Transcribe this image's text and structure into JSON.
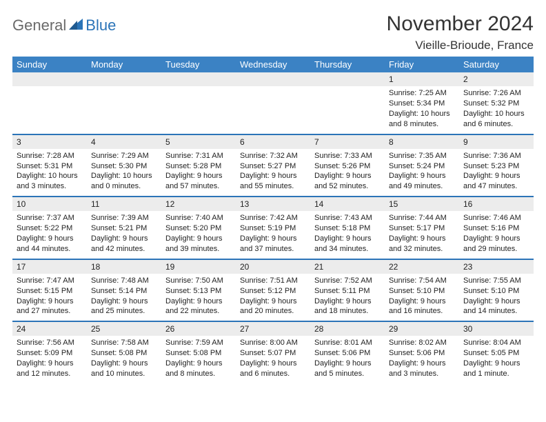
{
  "brand": {
    "text1": "General",
    "text2": "Blue"
  },
  "header": {
    "month_title": "November 2024",
    "location": "Vieille-Brioude, France"
  },
  "colors": {
    "header_bg": "#3b82c4",
    "rule": "#2b74b8",
    "shade": "#ececec",
    "text": "#222222"
  },
  "weekdays": [
    "Sunday",
    "Monday",
    "Tuesday",
    "Wednesday",
    "Thursday",
    "Friday",
    "Saturday"
  ],
  "weeks": [
    [
      {
        "n": "",
        "sr": "",
        "ss": "",
        "dl": "",
        "empty": true
      },
      {
        "n": "",
        "sr": "",
        "ss": "",
        "dl": "",
        "empty": true
      },
      {
        "n": "",
        "sr": "",
        "ss": "",
        "dl": "",
        "empty": true
      },
      {
        "n": "",
        "sr": "",
        "ss": "",
        "dl": "",
        "empty": true
      },
      {
        "n": "",
        "sr": "",
        "ss": "",
        "dl": "",
        "empty": true
      },
      {
        "n": "1",
        "sr": "Sunrise: 7:25 AM",
        "ss": "Sunset: 5:34 PM",
        "dl": "Daylight: 10 hours and 8 minutes."
      },
      {
        "n": "2",
        "sr": "Sunrise: 7:26 AM",
        "ss": "Sunset: 5:32 PM",
        "dl": "Daylight: 10 hours and 6 minutes."
      }
    ],
    [
      {
        "n": "3",
        "sr": "Sunrise: 7:28 AM",
        "ss": "Sunset: 5:31 PM",
        "dl": "Daylight: 10 hours and 3 minutes."
      },
      {
        "n": "4",
        "sr": "Sunrise: 7:29 AM",
        "ss": "Sunset: 5:30 PM",
        "dl": "Daylight: 10 hours and 0 minutes."
      },
      {
        "n": "5",
        "sr": "Sunrise: 7:31 AM",
        "ss": "Sunset: 5:28 PM",
        "dl": "Daylight: 9 hours and 57 minutes."
      },
      {
        "n": "6",
        "sr": "Sunrise: 7:32 AM",
        "ss": "Sunset: 5:27 PM",
        "dl": "Daylight: 9 hours and 55 minutes."
      },
      {
        "n": "7",
        "sr": "Sunrise: 7:33 AM",
        "ss": "Sunset: 5:26 PM",
        "dl": "Daylight: 9 hours and 52 minutes."
      },
      {
        "n": "8",
        "sr": "Sunrise: 7:35 AM",
        "ss": "Sunset: 5:24 PM",
        "dl": "Daylight: 9 hours and 49 minutes."
      },
      {
        "n": "9",
        "sr": "Sunrise: 7:36 AM",
        "ss": "Sunset: 5:23 PM",
        "dl": "Daylight: 9 hours and 47 minutes."
      }
    ],
    [
      {
        "n": "10",
        "sr": "Sunrise: 7:37 AM",
        "ss": "Sunset: 5:22 PM",
        "dl": "Daylight: 9 hours and 44 minutes."
      },
      {
        "n": "11",
        "sr": "Sunrise: 7:39 AM",
        "ss": "Sunset: 5:21 PM",
        "dl": "Daylight: 9 hours and 42 minutes."
      },
      {
        "n": "12",
        "sr": "Sunrise: 7:40 AM",
        "ss": "Sunset: 5:20 PM",
        "dl": "Daylight: 9 hours and 39 minutes."
      },
      {
        "n": "13",
        "sr": "Sunrise: 7:42 AM",
        "ss": "Sunset: 5:19 PM",
        "dl": "Daylight: 9 hours and 37 minutes."
      },
      {
        "n": "14",
        "sr": "Sunrise: 7:43 AM",
        "ss": "Sunset: 5:18 PM",
        "dl": "Daylight: 9 hours and 34 minutes."
      },
      {
        "n": "15",
        "sr": "Sunrise: 7:44 AM",
        "ss": "Sunset: 5:17 PM",
        "dl": "Daylight: 9 hours and 32 minutes."
      },
      {
        "n": "16",
        "sr": "Sunrise: 7:46 AM",
        "ss": "Sunset: 5:16 PM",
        "dl": "Daylight: 9 hours and 29 minutes."
      }
    ],
    [
      {
        "n": "17",
        "sr": "Sunrise: 7:47 AM",
        "ss": "Sunset: 5:15 PM",
        "dl": "Daylight: 9 hours and 27 minutes."
      },
      {
        "n": "18",
        "sr": "Sunrise: 7:48 AM",
        "ss": "Sunset: 5:14 PM",
        "dl": "Daylight: 9 hours and 25 minutes."
      },
      {
        "n": "19",
        "sr": "Sunrise: 7:50 AM",
        "ss": "Sunset: 5:13 PM",
        "dl": "Daylight: 9 hours and 22 minutes."
      },
      {
        "n": "20",
        "sr": "Sunrise: 7:51 AM",
        "ss": "Sunset: 5:12 PM",
        "dl": "Daylight: 9 hours and 20 minutes."
      },
      {
        "n": "21",
        "sr": "Sunrise: 7:52 AM",
        "ss": "Sunset: 5:11 PM",
        "dl": "Daylight: 9 hours and 18 minutes."
      },
      {
        "n": "22",
        "sr": "Sunrise: 7:54 AM",
        "ss": "Sunset: 5:10 PM",
        "dl": "Daylight: 9 hours and 16 minutes."
      },
      {
        "n": "23",
        "sr": "Sunrise: 7:55 AM",
        "ss": "Sunset: 5:10 PM",
        "dl": "Daylight: 9 hours and 14 minutes."
      }
    ],
    [
      {
        "n": "24",
        "sr": "Sunrise: 7:56 AM",
        "ss": "Sunset: 5:09 PM",
        "dl": "Daylight: 9 hours and 12 minutes."
      },
      {
        "n": "25",
        "sr": "Sunrise: 7:58 AM",
        "ss": "Sunset: 5:08 PM",
        "dl": "Daylight: 9 hours and 10 minutes."
      },
      {
        "n": "26",
        "sr": "Sunrise: 7:59 AM",
        "ss": "Sunset: 5:08 PM",
        "dl": "Daylight: 9 hours and 8 minutes."
      },
      {
        "n": "27",
        "sr": "Sunrise: 8:00 AM",
        "ss": "Sunset: 5:07 PM",
        "dl": "Daylight: 9 hours and 6 minutes."
      },
      {
        "n": "28",
        "sr": "Sunrise: 8:01 AM",
        "ss": "Sunset: 5:06 PM",
        "dl": "Daylight: 9 hours and 5 minutes."
      },
      {
        "n": "29",
        "sr": "Sunrise: 8:02 AM",
        "ss": "Sunset: 5:06 PM",
        "dl": "Daylight: 9 hours and 3 minutes."
      },
      {
        "n": "30",
        "sr": "Sunrise: 8:04 AM",
        "ss": "Sunset: 5:05 PM",
        "dl": "Daylight: 9 hours and 1 minute."
      }
    ]
  ]
}
